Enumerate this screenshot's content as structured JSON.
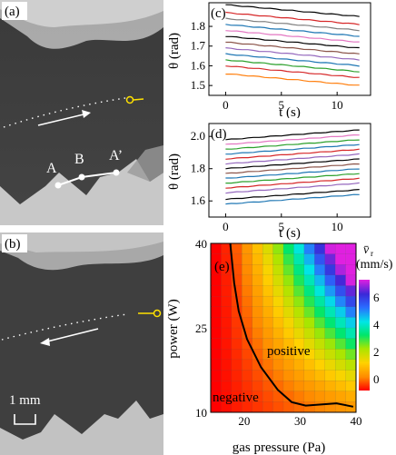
{
  "panels": {
    "a": {
      "label": "(a)",
      "points": [
        "A",
        "B",
        "A’"
      ]
    },
    "b": {
      "label": "(b)",
      "scalebar": "1 mm"
    },
    "c": {
      "label": "(c)"
    },
    "d": {
      "label": "(d)"
    },
    "e": {
      "label": "(e)",
      "region_positive": "positive",
      "region_negative": "negative",
      "colorbar_title": "v̄",
      "colorbar_sub": "r",
      "colorbar_unit": "(mm/s)",
      "colorbar_ticks": [
        "6",
        "4",
        "2",
        "0"
      ]
    }
  },
  "chart_data": [
    {
      "id": "c",
      "type": "line",
      "xlabel": "t (s)",
      "ylabel": "θ (rad)",
      "xlim": [
        -1.5,
        13
      ],
      "ylim": [
        1.45,
        1.92
      ],
      "xticks": [
        "0",
        "5",
        "10"
      ],
      "yticks": [
        "1.5",
        "1.6",
        "1.7",
        "1.8"
      ],
      "x": [
        0,
        12
      ],
      "series": [
        {
          "color": "#000000",
          "values": [
            1.91,
            1.85
          ]
        },
        {
          "color": "#d62728",
          "values": [
            1.87,
            1.81
          ]
        },
        {
          "color": "#7f7f7f",
          "values": [
            1.84,
            1.78
          ]
        },
        {
          "color": "#1f77b4",
          "values": [
            1.81,
            1.75
          ]
        },
        {
          "color": "#e377c2",
          "values": [
            1.78,
            1.72
          ]
        },
        {
          "color": "#000000",
          "values": [
            1.75,
            1.69
          ]
        },
        {
          "color": "#8c564b",
          "values": [
            1.72,
            1.66
          ]
        },
        {
          "color": "#9467bd",
          "values": [
            1.69,
            1.63
          ]
        },
        {
          "color": "#1f77b4",
          "values": [
            1.66,
            1.6
          ]
        },
        {
          "color": "#2ca02c",
          "values": [
            1.63,
            1.57
          ]
        },
        {
          "color": "#d62728",
          "values": [
            1.6,
            1.54
          ]
        },
        {
          "color": "#ff7f0e",
          "values": [
            1.56,
            1.5
          ]
        }
      ]
    },
    {
      "id": "d",
      "type": "line",
      "xlabel": "t (s)",
      "ylabel": "θ (rad)",
      "xlim": [
        -1.5,
        13
      ],
      "ylim": [
        1.5,
        2.08
      ],
      "xticks": [
        "0",
        "5",
        "10"
      ],
      "yticks": [
        "1.6",
        "1.8",
        "2.0"
      ],
      "x": [
        0,
        12
      ],
      "series": [
        {
          "color": "#000000",
          "values": [
            1.98,
            2.04
          ]
        },
        {
          "color": "#e377c2",
          "values": [
            1.95,
            2.01
          ]
        },
        {
          "color": "#2ca02c",
          "values": [
            1.92,
            1.98
          ]
        },
        {
          "color": "#1f77b4",
          "values": [
            1.89,
            1.95
          ]
        },
        {
          "color": "#d62728",
          "values": [
            1.86,
            1.92
          ]
        },
        {
          "color": "#9467bd",
          "values": [
            1.83,
            1.89
          ]
        },
        {
          "color": "#000000",
          "values": [
            1.8,
            1.86
          ]
        },
        {
          "color": "#8c564b",
          "values": [
            1.77,
            1.83
          ]
        },
        {
          "color": "#1f77b4",
          "values": [
            1.74,
            1.8
          ]
        },
        {
          "color": "#2ca02c",
          "values": [
            1.71,
            1.77
          ]
        },
        {
          "color": "#d62728",
          "values": [
            1.68,
            1.74
          ]
        },
        {
          "color": "#9467bd",
          "values": [
            1.65,
            1.71
          ]
        },
        {
          "color": "#000000",
          "values": [
            1.61,
            1.67
          ]
        },
        {
          "color": "#1f77b4",
          "values": [
            1.58,
            1.64
          ]
        }
      ]
    },
    {
      "id": "e",
      "type": "heatmap",
      "xlabel": "gas pressure (Pa)",
      "ylabel": "power (W)",
      "xlim": [
        14,
        40
      ],
      "ylim": [
        10,
        40
      ],
      "xticks": [
        20,
        30,
        40
      ],
      "yticks": [
        10,
        25,
        40
      ],
      "grid_cols": 14,
      "grid_rows": 16,
      "value_range": [
        -1,
        7
      ],
      "boundary": [
        [
          17.5,
          40
        ],
        [
          18.2,
          33
        ],
        [
          19,
          28
        ],
        [
          20.5,
          23
        ],
        [
          23,
          18
        ],
        [
          26,
          14
        ],
        [
          28.5,
          11.8
        ],
        [
          31,
          11.2
        ],
        [
          34,
          11.4
        ],
        [
          36.5,
          11.6
        ],
        [
          39.5,
          11.0
        ]
      ]
    }
  ]
}
